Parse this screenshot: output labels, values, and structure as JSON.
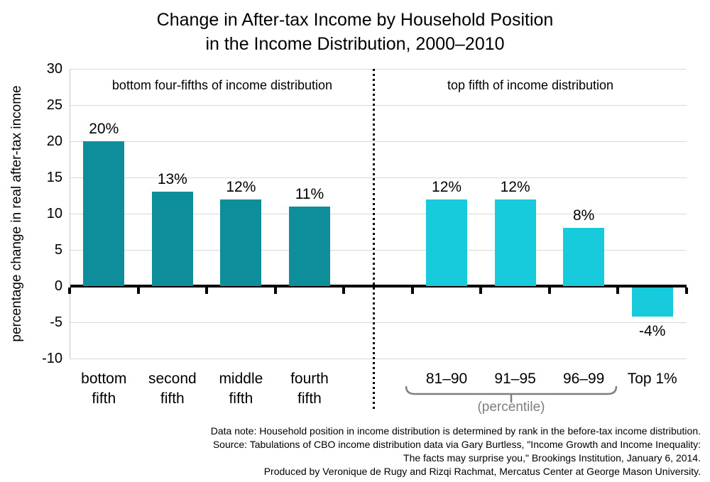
{
  "title": {
    "line1": "Change in After-tax Income by Household Position",
    "line2": "in the Income Distribution, 2000–2010"
  },
  "y_axis": {
    "label": "percentage change in real after-tax income",
    "ticks": [
      30,
      25,
      20,
      15,
      10,
      5,
      0,
      -5,
      -10
    ]
  },
  "sections": {
    "left": "bottom four-fifths of income distribution",
    "right": "top fifth of income distribution"
  },
  "chart_data": {
    "type": "bar",
    "title": "Change in After-tax Income by Household Position in the Income Distribution, 2000–2010",
    "xlabel": "",
    "ylabel": "percentage change in real after-tax income",
    "ylim": [
      -10,
      30
    ],
    "ytick_step": 5,
    "grid": true,
    "legend": "none",
    "bars": [
      {
        "category": "bottom\nfifth",
        "value": 20,
        "label": "20%",
        "group": "bottom-four-fifths",
        "slot": 0
      },
      {
        "category": "second\nfifth",
        "value": 13,
        "label": "13%",
        "group": "bottom-four-fifths",
        "slot": 1
      },
      {
        "category": "middle\nfifth",
        "value": 12,
        "label": "12%",
        "group": "bottom-four-fifths",
        "slot": 2
      },
      {
        "category": "fourth\nfifth",
        "value": 11,
        "label": "11%",
        "group": "bottom-four-fifths",
        "slot": 3
      },
      {
        "category": "81–90",
        "value": 12,
        "label": "12%",
        "group": "top-fifth",
        "slot": 5
      },
      {
        "category": "91–95",
        "value": 12,
        "label": "12%",
        "group": "top-fifth",
        "slot": 6
      },
      {
        "category": "96–99",
        "value": 8,
        "label": "8%",
        "group": "top-fifth",
        "slot": 7
      },
      {
        "category": "Top 1%",
        "value": -4,
        "label": "-4%",
        "group": "top-fifth",
        "slot": 8
      }
    ],
    "colors": {
      "bottom-four-fifths": "#0e8e9b",
      "top-fifth": "#17cbdd",
      "gridline": "#d9d9d9",
      "axis": "#000000",
      "muted_text": "#7f7f7f"
    },
    "annotation": {
      "bracket_label": "(percentile)",
      "bracket_covers": [
        "81–90",
        "91–95",
        "96–99"
      ]
    }
  },
  "footer": {
    "lines": [
      "Data note: Household position in income distribution is determined by rank in the before-tax income distribution.",
      "Source: Tabulations of CBO income distribution data via Gary Burtless, \"Income Growth and Income Inequality:",
      "The facts may surprise you,\" Brookings Institution, January 6, 2014.",
      "Produced by Veronique de Rugy and Rizqi Rachmat, Mercatus Center at George Mason University."
    ]
  }
}
